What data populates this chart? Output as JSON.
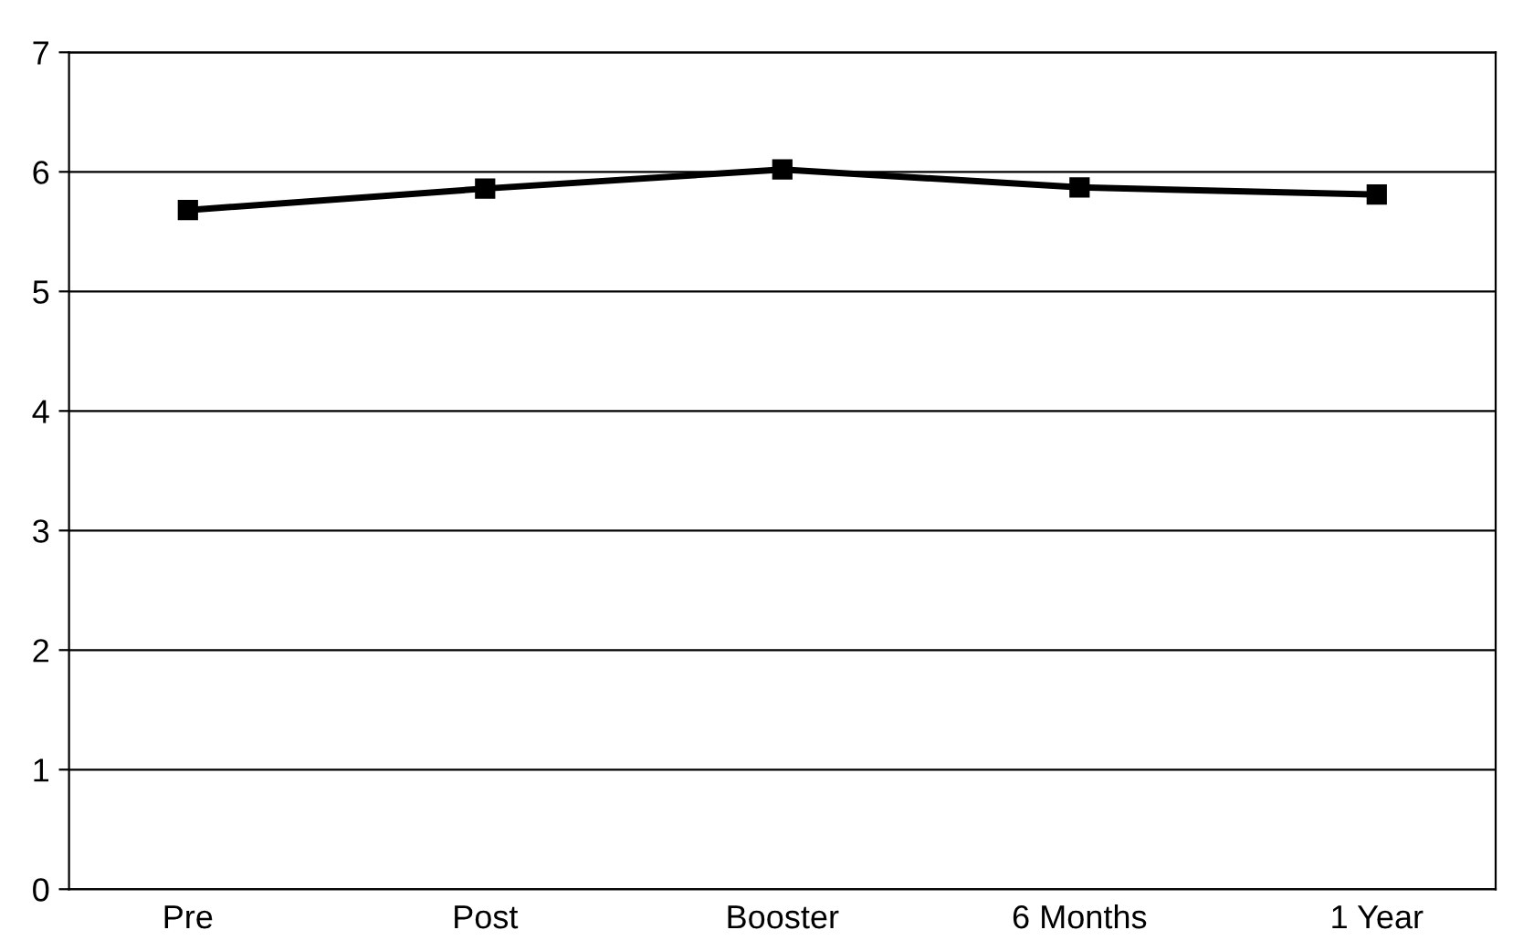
{
  "chart_data": {
    "type": "line",
    "categories": [
      "Pre",
      "Post",
      "Booster",
      "6 Months",
      "1 Year"
    ],
    "series": [
      {
        "color": "#000000",
        "values": [
          5.68,
          5.86,
          6.02,
          5.87,
          5.81
        ]
      }
    ],
    "ylim": [
      0,
      7
    ],
    "yticks": [
      0,
      1,
      2,
      3,
      4,
      5,
      6,
      7
    ],
    "grid": "y",
    "marker": "square",
    "line_style": "solid"
  }
}
